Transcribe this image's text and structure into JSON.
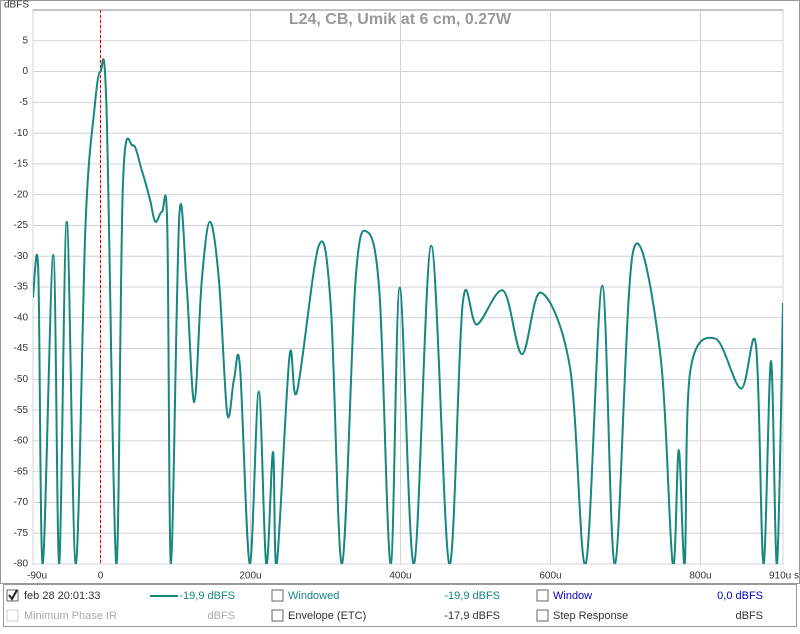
{
  "chart_data": {
    "type": "line",
    "title": "L24, CB, Umik at 6 cm, 0.27W",
    "y_label": "dBFS",
    "x": [
      -90,
      -83,
      -77,
      -63,
      -55,
      -45,
      -33,
      -20,
      -8,
      0,
      8,
      21,
      30,
      43,
      55,
      66,
      73,
      82,
      89,
      94,
      105,
      115,
      125,
      135,
      146,
      158,
      169,
      178,
      186,
      199,
      211,
      221,
      230,
      235,
      252,
      262,
      291,
      307,
      322,
      340,
      355,
      372,
      387,
      399,
      418,
      441,
      465,
      483,
      502,
      537,
      562,
      587,
      626,
      647,
      669,
      686,
      710,
      746,
      763,
      771,
      779,
      786,
      820,
      854,
      874,
      884,
      894,
      902,
      910
    ],
    "series": [
      {
        "name": "feb 28 20:01:33",
        "color": "#17877f",
        "values": [
          -36.7,
          -32.2,
          -80,
          -29.8,
          -80,
          -24.4,
          -80,
          -25,
          -6,
          0,
          -6,
          -80,
          -18,
          -12,
          -16,
          -20.8,
          -24.4,
          -22.8,
          -25,
          -80,
          -23.7,
          -35,
          -53.7,
          -34,
          -24.4,
          -34,
          -55.6,
          -50,
          -48,
          -80,
          -52,
          -80,
          -61.8,
          -80,
          -46.3,
          -52,
          -28.3,
          -38,
          -80,
          -34,
          -26,
          -36,
          -80,
          -35.1,
          -80,
          -28.3,
          -80,
          -37.6,
          -41.1,
          -35.6,
          -45.9,
          -35.9,
          -48.1,
          -80,
          -34.8,
          -80,
          -29.3,
          -45.5,
          -80,
          -61.5,
          -80,
          -49,
          -43.4,
          -51.5,
          -44.5,
          -80,
          -47,
          -80,
          -37.6
        ]
      }
    ],
    "xlim": [
      -90,
      910
    ],
    "ylim": [
      -80,
      10
    ],
    "xticks": [
      {
        "value": -90,
        "label": "-90u"
      },
      0,
      {
        "value": 200,
        "label": "200u"
      },
      {
        "value": 400,
        "label": "400u"
      },
      {
        "value": 600,
        "label": "600u"
      },
      {
        "value": 800,
        "label": "800u"
      },
      {
        "value": 910,
        "label": "910u s"
      }
    ],
    "yticks": [
      -80,
      -75,
      -70,
      -65,
      -60,
      -55,
      -50,
      -45,
      -40,
      -35,
      -30,
      -25,
      -20,
      -15,
      -10,
      -5,
      0,
      5
    ],
    "grid": true,
    "marker_x": 0,
    "marker_color": "#e00000"
  },
  "panel": {
    "rows": [
      [
        "feb 28 20:01:33",
        "-19,9 dBFS",
        "Windowed",
        "-19,9 dBFS",
        "Window",
        "0,0 dBFS"
      ],
      [
        "Minimum Phase IR",
        "dBFS",
        "Envelope (ETC)",
        "-17,9 dBFS",
        "Step Response",
        "dBFS"
      ]
    ]
  }
}
